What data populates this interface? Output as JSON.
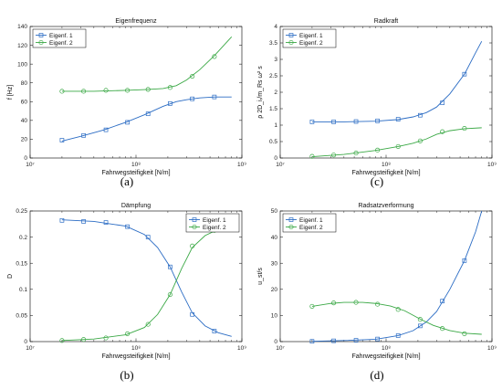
{
  "colors": {
    "series1": "#2b6cc4",
    "series2": "#3aa845",
    "axis": "#000000"
  },
  "captions": [
    "(a)",
    "(b)",
    "(c)",
    "(d)"
  ],
  "chart_data": [
    {
      "type": "line",
      "title": "Eigenfrequenz",
      "xlabel": "Fahrwegsteifigkeit [N/m]",
      "ylabel": "f [Hz]",
      "xscale": "log",
      "xlim": [
        10000000.0,
        1000000000.0
      ],
      "ylim": [
        0,
        140
      ],
      "yticks": [
        0,
        20,
        40,
        60,
        80,
        100,
        120,
        140
      ],
      "ytick_labels": [
        "0",
        "20",
        "40",
        "60",
        "80",
        "100",
        "120",
        "140"
      ],
      "xticks": [
        10000000.0,
        100000000.0,
        1000000000.0
      ],
      "xtick_labels": [
        "10⁷",
        "10⁸",
        "10⁹"
      ],
      "legend": "top-left",
      "grid": false,
      "series": [
        {
          "name": "Eigenf. 1",
          "marker": "square",
          "x": [
            20000000.0,
            32000000.0,
            52000000.0,
            83000000.0,
            130000000.0,
            210000000.0,
            340000000.0,
            550000000.0
          ],
          "y": [
            19,
            24,
            30,
            38,
            47,
            58,
            63,
            65
          ],
          "curve_x": [
            20000000.0,
            30000000.0,
            50000000.0,
            80000000.0,
            120000000.0,
            180000000.0,
            240000000.0,
            300000000.0,
            400000000.0,
            550000000.0,
            800000000.0
          ],
          "curve_y": [
            18,
            23,
            30,
            38,
            46,
            55,
            60,
            62,
            64,
            65,
            65
          ]
        },
        {
          "name": "Eigenf. 2",
          "marker": "circle",
          "x": [
            20000000.0,
            32000000.0,
            52000000.0,
            83000000.0,
            130000000.0,
            210000000.0,
            340000000.0,
            550000000.0
          ],
          "y": [
            71,
            71,
            72,
            72,
            73,
            75,
            87,
            108
          ],
          "curve_x": [
            20000000.0,
            40000000.0,
            80000000.0,
            130000000.0,
            180000000.0,
            240000000.0,
            300000000.0,
            400000000.0,
            550000000.0,
            800000000.0
          ],
          "curve_y": [
            71,
            71,
            72,
            73,
            74,
            77,
            83,
            94,
            109,
            129
          ]
        }
      ]
    },
    {
      "type": "line",
      "title": "Dämpfung",
      "xlabel": "Fahrwegsteifigkeit [N/m]",
      "ylabel": "D",
      "xscale": "log",
      "xlim": [
        10000000.0,
        1000000000.0
      ],
      "ylim": [
        0,
        0.25
      ],
      "yticks": [
        0,
        0.05,
        0.1,
        0.15,
        0.2,
        0.25
      ],
      "ytick_labels": [
        "0",
        "0.05",
        "0.1",
        "0.15",
        "0.2",
        "0.25"
      ],
      "xticks": [
        10000000.0,
        100000000.0,
        1000000000.0
      ],
      "xtick_labels": [
        "10⁷",
        "10⁸",
        "10⁹"
      ],
      "legend": "top-right",
      "grid": false,
      "series": [
        {
          "name": "Eigenf. 1",
          "marker": "square",
          "x": [
            20000000.0,
            32000000.0,
            52000000.0,
            83000000.0,
            130000000.0,
            210000000.0,
            340000000.0,
            550000000.0
          ],
          "y": [
            0.232,
            0.23,
            0.228,
            0.22,
            0.2,
            0.143,
            0.052,
            0.02
          ],
          "curve_x": [
            20000000.0,
            40000000.0,
            80000000.0,
            120000000.0,
            160000000.0,
            210000000.0,
            270000000.0,
            340000000.0,
            450000000.0,
            600000000.0,
            800000000.0
          ],
          "curve_y": [
            0.233,
            0.23,
            0.221,
            0.205,
            0.18,
            0.143,
            0.095,
            0.055,
            0.03,
            0.017,
            0.01
          ]
        },
        {
          "name": "Eigenf. 2",
          "marker": "circle",
          "x": [
            20000000.0,
            32000000.0,
            52000000.0,
            83000000.0,
            130000000.0,
            210000000.0,
            340000000.0,
            550000000.0
          ],
          "y": [
            0.002,
            0.004,
            0.007,
            0.015,
            0.033,
            0.09,
            0.183,
            0.213
          ],
          "curve_x": [
            20000000.0,
            40000000.0,
            80000000.0,
            120000000.0,
            160000000.0,
            210000000.0,
            270000000.0,
            340000000.0,
            450000000.0,
            600000000.0,
            800000000.0
          ],
          "curve_y": [
            0.002,
            0.005,
            0.013,
            0.027,
            0.052,
            0.09,
            0.14,
            0.18,
            0.203,
            0.215,
            0.222
          ]
        }
      ]
    },
    {
      "type": "line",
      "title": "Radkraft",
      "xlabel": "Fahrwegsteifigkeit [N/m]",
      "ylabel": "ρ 2D_iᵣ/m_Rs ω² s",
      "xscale": "log",
      "xlim": [
        10000000.0,
        1000000000.0
      ],
      "ylim": [
        0,
        4
      ],
      "yticks": [
        0,
        0.5,
        1,
        1.5,
        2,
        2.5,
        3,
        3.5,
        4
      ],
      "ytick_labels": [
        "0",
        "0.5",
        "1",
        "1.5",
        "2",
        "2.5",
        "3",
        "3.5",
        "4"
      ],
      "xticks": [
        10000000.0,
        100000000.0,
        1000000000.0
      ],
      "xtick_labels": [
        "10⁷",
        "10⁸",
        "10⁹"
      ],
      "legend": "top-left",
      "grid": false,
      "series": [
        {
          "name": "Eigenf. 1",
          "marker": "square",
          "x": [
            20000000.0,
            32000000.0,
            52000000.0,
            83000000.0,
            130000000.0,
            210000000.0,
            340000000.0,
            550000000.0
          ],
          "y": [
            1.1,
            1.1,
            1.11,
            1.13,
            1.18,
            1.3,
            1.68,
            2.55
          ],
          "curve_x": [
            20000000.0,
            40000000.0,
            80000000.0,
            130000000.0,
            180000000.0,
            240000000.0,
            300000000.0,
            400000000.0,
            550000000.0,
            700000000.0,
            800000000.0
          ],
          "curve_y": [
            1.1,
            1.1,
            1.12,
            1.17,
            1.25,
            1.38,
            1.55,
            1.95,
            2.55,
            3.2,
            3.55
          ]
        },
        {
          "name": "Eigenf. 2",
          "marker": "circle",
          "x": [
            20000000.0,
            32000000.0,
            52000000.0,
            83000000.0,
            130000000.0,
            210000000.0,
            340000000.0,
            550000000.0
          ],
          "y": [
            0.05,
            0.09,
            0.15,
            0.24,
            0.35,
            0.52,
            0.8,
            0.9
          ],
          "curve_x": [
            20000000.0,
            40000000.0,
            80000000.0,
            130000000.0,
            180000000.0,
            240000000.0,
            300000000.0,
            400000000.0,
            550000000.0,
            800000000.0
          ],
          "curve_y": [
            0.04,
            0.11,
            0.23,
            0.35,
            0.45,
            0.58,
            0.72,
            0.83,
            0.89,
            0.92
          ]
        }
      ]
    },
    {
      "type": "line",
      "title": "Radsatzverformung",
      "xlabel": "Fahrwegsteifigkeit [N/m]",
      "ylabel": "u_st/s",
      "xscale": "log",
      "xlim": [
        10000000.0,
        1000000000.0
      ],
      "ylim": [
        0,
        50
      ],
      "yticks": [
        0,
        10,
        20,
        30,
        40,
        50
      ],
      "ytick_labels": [
        "0",
        "10",
        "20",
        "30",
        "40",
        "50"
      ],
      "xticks": [
        10000000.0,
        100000000.0,
        1000000000.0
      ],
      "xtick_labels": [
        "10⁷",
        "10⁸",
        "10⁹"
      ],
      "legend": "top-left",
      "grid": false,
      "series": [
        {
          "name": "Eigenf. 1",
          "marker": "square",
          "x": [
            20000000.0,
            32000000.0,
            52000000.0,
            83000000.0,
            130000000.0,
            210000000.0,
            340000000.0,
            550000000.0
          ],
          "y": [
            0.1,
            0.3,
            0.5,
            1,
            2.3,
            6,
            15.5,
            31
          ],
          "curve_x": [
            20000000.0,
            40000000.0,
            80000000.0,
            130000000.0,
            180000000.0,
            240000000.0,
            300000000.0,
            400000000.0,
            550000000.0,
            700000000.0,
            800000000.0
          ],
          "curve_y": [
            0.1,
            0.4,
            0.9,
            2.3,
            4.2,
            7.5,
            11.5,
            20,
            31,
            42,
            50
          ]
        },
        {
          "name": "Eigenf. 2",
          "marker": "circle",
          "x": [
            20000000.0,
            32000000.0,
            52000000.0,
            83000000.0,
            130000000.0,
            210000000.0,
            340000000.0,
            550000000.0
          ],
          "y": [
            13.5,
            14.8,
            15,
            14.3,
            12.3,
            8.5,
            5,
            3
          ],
          "curve_x": [
            20000000.0,
            30000000.0,
            40000000.0,
            60000000.0,
            80000000.0,
            110000000.0,
            150000000.0,
            210000000.0,
            280000000.0,
            400000000.0,
            550000000.0,
            800000000.0
          ],
          "curve_y": [
            13.5,
            14.6,
            15,
            15,
            14.6,
            13.6,
            11.8,
            8.6,
            6.2,
            4.2,
            3.2,
            2.8
          ]
        }
      ]
    }
  ]
}
